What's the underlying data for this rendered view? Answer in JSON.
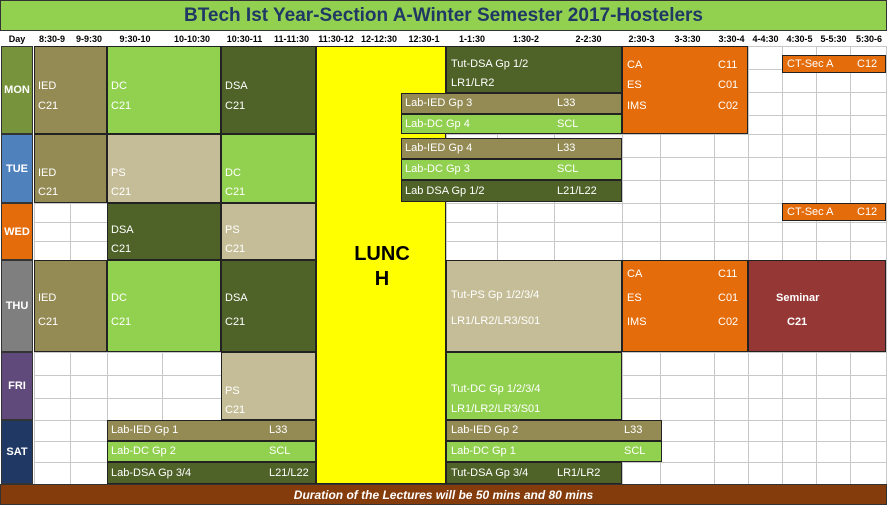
{
  "title": "BTech Ist Year-Section A-Winter Semester 2017-Hostelers",
  "headers": [
    "Day",
    "8:30-9",
    "9-9:30",
    "9:30-10",
    "10-10:30",
    "10:30-11",
    "11-11:30",
    "11:30-12",
    "12-12:30",
    "12:30-1",
    "1-1:30",
    "1:30-2",
    "2-2:30",
    "2:30-3",
    "3-3:30",
    "3:30-4",
    "4-4:30",
    "4:30-5",
    "5-5:30",
    "5:30-6"
  ],
  "days": [
    "MON",
    "TUE",
    "WED",
    "THU",
    "FRI",
    "SAT"
  ],
  "lunch": {
    "line1": "LUNC",
    "line2": "H"
  },
  "blocks": [
    {
      "lines": [
        "IED",
        "C21"
      ]
    },
    {
      "lines": [
        "DC",
        "C21"
      ]
    },
    {
      "lines": [
        "DSA",
        "C21"
      ]
    },
    {
      "lines": [
        "Tut-DSA Gp 1/2",
        "LR1/LR2"
      ]
    },
    {
      "lines": [
        "Lab-IED Gp 3",
        "L33"
      ]
    },
    {
      "lines": [
        "Lab-DC Gp 4",
        "SCL"
      ]
    },
    {
      "lines": [
        "CA",
        "C11"
      ]
    },
    {
      "lines": [
        "ES",
        "C01"
      ]
    },
    {
      "lines": [
        "IMS",
        "C02"
      ]
    },
    {
      "lines": [
        "CT-Sec A",
        "C12"
      ]
    },
    {
      "lines": [
        "IED",
        "C21"
      ]
    },
    {
      "lines": [
        "PS",
        "C21"
      ]
    },
    {
      "lines": [
        "DC",
        "C21"
      ]
    },
    {
      "lines": [
        "Lab-IED Gp 4",
        "L33"
      ]
    },
    {
      "lines": [
        "Lab-DC Gp 3",
        "SCL"
      ]
    },
    {
      "lines": [
        "Lab DSA Gp 1/2",
        "L21/L22"
      ]
    },
    {
      "lines": [
        "DSA",
        "C21"
      ]
    },
    {
      "lines": [
        "PS",
        "C21"
      ]
    },
    {
      "lines": [
        "CT-Sec A",
        "C12"
      ]
    },
    {
      "lines": [
        "IED",
        "C21"
      ]
    },
    {
      "lines": [
        "DC",
        "C21"
      ]
    },
    {
      "lines": [
        "DSA",
        "C21"
      ]
    },
    {
      "lines": [
        "Tut-PS Gp 1/2/3/4",
        "LR1/LR2/LR3/S01"
      ]
    },
    {
      "lines": [
        "CA",
        "C11"
      ]
    },
    {
      "lines": [
        "ES",
        "C01"
      ]
    },
    {
      "lines": [
        "IMS",
        "C02"
      ]
    },
    {
      "lines": [
        "Seminar",
        "C21"
      ]
    },
    {
      "lines": [
        "PS",
        "C21"
      ]
    },
    {
      "lines": [
        "Tut-DC Gp 1/2/3/4",
        "LR1/LR2/LR3/S01"
      ]
    },
    {
      "lines": [
        "Lab-IED Gp 1",
        "L33"
      ]
    },
    {
      "lines": [
        "Lab-DC Gp 2",
        "SCL"
      ]
    },
    {
      "lines": [
        "Lab-DSA Gp 3/4",
        "L21/L22"
      ]
    },
    {
      "lines": [
        "Lab-IED Gp 2",
        "L33"
      ]
    },
    {
      "lines": [
        "Lab-DC Gp 1",
        "SCL"
      ]
    },
    {
      "lines": [
        "Tut-DSA Gp 3/4",
        "LR1/LR2"
      ]
    }
  ],
  "footer": "Duration of the Lectures will be 50 mins and 80 mins"
}
